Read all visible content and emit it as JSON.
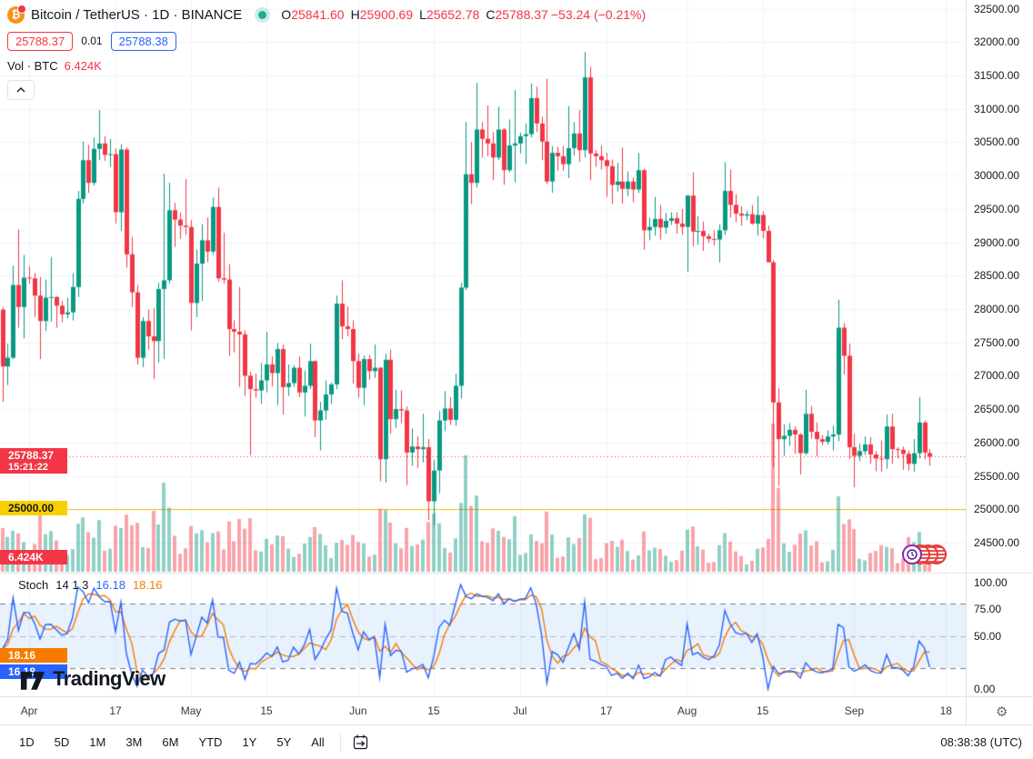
{
  "header": {
    "symbol_title": "Bitcoin / TetherUS · 1D · BINANCE",
    "ohlc": {
      "o_label": "O",
      "o": "25841.60",
      "h_label": "H",
      "h": "25900.69",
      "l_label": "L",
      "l": "25652.78",
      "c_label": "C",
      "c": "25788.37",
      "change": "−53.24 (−0.21%)"
    },
    "sell_price": "25788.37",
    "spread": "0.01",
    "buy_price": "25788.38",
    "vol_label": "Vol · BTC",
    "vol_value": "6.424K",
    "btc_glyph": "₿"
  },
  "indicator": {
    "name": "Stoch",
    "params": "14 1 3",
    "k_value": "16.18",
    "d_value": "18.16"
  },
  "logo_text": "TradingView",
  "toolbar": {
    "ranges": [
      "1D",
      "5D",
      "1M",
      "3M",
      "6M",
      "YTD",
      "1Y",
      "5Y",
      "All"
    ],
    "clock": "08:38:38 (UTC)"
  },
  "tags": {
    "last_price": "25788.37",
    "countdown": "15:21:22",
    "alert_price": "25000.00",
    "volume": "6.424K",
    "stoch_d": "18.16",
    "stoch_k": "16.18"
  },
  "colors": {
    "up": "#089981",
    "down": "#f23645",
    "vol_up": "rgba(8,153,129,0.45)",
    "vol_down": "rgba(242,54,69,0.45)",
    "stoch_k": "#2962ff",
    "stoch_d": "#f57c00",
    "alert_line": "#f0b90b",
    "grid": "#f0f3fa",
    "band_fill": "rgba(33,126,234,0.10)",
    "band_line": "#787b86",
    "mid_line": "#b2b5be",
    "last_line": "#f23645"
  },
  "chart_data": {
    "type": "candlestick",
    "title": "Bitcoin / TetherUS 1D BINANCE",
    "price_axis_labels": [
      32500,
      32000,
      31500,
      31000,
      30500,
      30000,
      29500,
      29000,
      28500,
      28000,
      27500,
      27000,
      26500,
      26000,
      25500,
      25000,
      24500
    ],
    "stoch_axis_labels": [
      100,
      75,
      50,
      0
    ],
    "price_axis_range": [
      24050,
      32630
    ],
    "stoch_bands": {
      "upper": 80,
      "mid": 50,
      "lower": 20
    },
    "last_price": 25788.37,
    "alert_level": 25000,
    "date_ticks": [
      {
        "label": "Apr",
        "i": 5
      },
      {
        "label": "17",
        "i": 21
      },
      {
        "label": "May",
        "i": 35
      },
      {
        "label": "15",
        "i": 49
      },
      {
        "label": "Jun",
        "i": 66
      },
      {
        "label": "15",
        "i": 80
      },
      {
        "label": "Jul",
        "i": 96
      },
      {
        "label": "17",
        "i": 112
      },
      {
        "label": "Aug",
        "i": 127
      },
      {
        "label": "15",
        "i": 141
      },
      {
        "label": "Sep",
        "i": 158
      },
      {
        "label": "18",
        "i": 175
      }
    ],
    "candles": [
      [
        27990,
        28030,
        26610,
        27140,
        11.2
      ],
      [
        27140,
        27480,
        26860,
        27270,
        8.9
      ],
      [
        27270,
        28650,
        27250,
        28360,
        10.5
      ],
      [
        28360,
        29190,
        27720,
        28030,
        9.8
      ],
      [
        28030,
        28810,
        27560,
        28470,
        7.6
      ],
      [
        28470,
        28640,
        28380,
        28460,
        5.2
      ],
      [
        28460,
        28540,
        27880,
        28200,
        7.1
      ],
      [
        28200,
        28480,
        27250,
        27820,
        14.8
      ],
      [
        27820,
        28440,
        27670,
        28170,
        9.6
      ],
      [
        28170,
        28780,
        27810,
        28180,
        10.4
      ],
      [
        28180,
        28190,
        27720,
        28050,
        8.0
      ],
      [
        28050,
        28120,
        27800,
        27920,
        5.6
      ],
      [
        27920,
        28170,
        27860,
        27950,
        4.3
      ],
      [
        27950,
        28540,
        27830,
        28330,
        5.8
      ],
      [
        28330,
        29770,
        28180,
        29650,
        12.3
      ],
      [
        29650,
        30510,
        29580,
        30230,
        13.9
      ],
      [
        30230,
        30460,
        29740,
        29890,
        10.1
      ],
      [
        29890,
        30570,
        29850,
        30400,
        8.7
      ],
      [
        30400,
        30980,
        30230,
        30480,
        13.2
      ],
      [
        30480,
        30590,
        30220,
        30310,
        5.4
      ],
      [
        30310,
        30550,
        30130,
        30320,
        5.9
      ],
      [
        30320,
        30410,
        29280,
        29450,
        11.8
      ],
      [
        29450,
        30470,
        29170,
        30390,
        11.2
      ],
      [
        30390,
        30420,
        28620,
        28820,
        14.6
      ],
      [
        28820,
        29080,
        28030,
        28250,
        11.9
      ],
      [
        28250,
        28360,
        27170,
        27270,
        12.5
      ],
      [
        27270,
        27880,
        27130,
        27820,
        6.3
      ],
      [
        27820,
        27990,
        27390,
        27590,
        6.1
      ],
      [
        27590,
        28010,
        26950,
        27520,
        15.6
      ],
      [
        27520,
        28390,
        27200,
        28300,
        12.1
      ],
      [
        28300,
        30030,
        27250,
        28430,
        22.8
      ],
      [
        28430,
        29890,
        28380,
        29480,
        16.4
      ],
      [
        29480,
        29590,
        28930,
        29340,
        9.2
      ],
      [
        29340,
        29450,
        29050,
        29250,
        4.6
      ],
      [
        29250,
        29950,
        29110,
        29230,
        6.0
      ],
      [
        29230,
        29330,
        27680,
        28090,
        11.7
      ],
      [
        28090,
        28890,
        27880,
        28680,
        9.8
      ],
      [
        28680,
        29270,
        28120,
        29030,
        10.6
      ],
      [
        29030,
        29370,
        28700,
        28860,
        7.5
      ],
      [
        28860,
        29670,
        28810,
        29530,
        9.9
      ],
      [
        29530,
        29820,
        28410,
        28460,
        10.3
      ],
      [
        28460,
        29140,
        28380,
        28440,
        5.7
      ],
      [
        28440,
        28670,
        27300,
        27700,
        12.9
      ],
      [
        27700,
        27830,
        27350,
        27660,
        7.8
      ],
      [
        27660,
        28330,
        26830,
        27620,
        13.5
      ],
      [
        27620,
        27680,
        26700,
        27000,
        11.0
      ],
      [
        27000,
        27060,
        25810,
        26800,
        13.7
      ],
      [
        26800,
        27030,
        26670,
        26780,
        5.5
      ],
      [
        26780,
        27190,
        26580,
        26930,
        5.2
      ],
      [
        26930,
        27660,
        26750,
        27170,
        8.4
      ],
      [
        27170,
        27290,
        26840,
        27040,
        7.0
      ],
      [
        27040,
        27490,
        26560,
        27400,
        9.3
      ],
      [
        27400,
        27470,
        26420,
        26830,
        9.1
      ],
      [
        26830,
        27170,
        26700,
        26890,
        5.9
      ],
      [
        26890,
        27160,
        26830,
        27120,
        3.8
      ],
      [
        27120,
        27290,
        26680,
        26750,
        4.6
      ],
      [
        26750,
        27080,
        26390,
        26850,
        7.2
      ],
      [
        26850,
        27480,
        26800,
        27220,
        8.9
      ],
      [
        27220,
        27230,
        26080,
        26330,
        11.4
      ],
      [
        26330,
        26610,
        25880,
        26480,
        9.7
      ],
      [
        26480,
        26930,
        26340,
        26720,
        6.8
      ],
      [
        26720,
        26900,
        26580,
        26870,
        3.5
      ],
      [
        26870,
        28200,
        26800,
        28080,
        7.4
      ],
      [
        28080,
        28430,
        27550,
        27740,
        8.1
      ],
      [
        27740,
        28040,
        27590,
        27700,
        6.9
      ],
      [
        27700,
        27830,
        26880,
        27220,
        9.4
      ],
      [
        27220,
        27330,
        26670,
        26820,
        7.6
      ],
      [
        26820,
        27300,
        26560,
        27250,
        7.2
      ],
      [
        27250,
        27310,
        26940,
        27070,
        3.9
      ],
      [
        27070,
        27470,
        26970,
        27120,
        4.4
      ],
      [
        27120,
        27130,
        25420,
        25750,
        16.1
      ],
      [
        25750,
        27330,
        25400,
        27240,
        15.8
      ],
      [
        27240,
        27390,
        26130,
        26350,
        12.6
      ],
      [
        26350,
        26790,
        26220,
        26500,
        7.3
      ],
      [
        26500,
        26780,
        26290,
        26480,
        6.0
      ],
      [
        26480,
        26540,
        25360,
        25850,
        11.2
      ],
      [
        25850,
        26210,
        25650,
        25940,
        6.6
      ],
      [
        25940,
        26090,
        25620,
        25900,
        7.0
      ],
      [
        25900,
        26430,
        25700,
        25930,
        8.2
      ],
      [
        25930,
        26050,
        24840,
        25120,
        12.7
      ],
      [
        25120,
        25740,
        24760,
        25580,
        14.9
      ],
      [
        25580,
        26470,
        25240,
        26330,
        12.4
      ],
      [
        26330,
        26770,
        26170,
        26510,
        6.1
      ],
      [
        26510,
        26680,
        26260,
        26340,
        4.9
      ],
      [
        26340,
        27030,
        26250,
        26850,
        8.5
      ],
      [
        26850,
        28390,
        26660,
        28320,
        17.6
      ],
      [
        28320,
        30800,
        28280,
        30020,
        29.8
      ],
      [
        30020,
        30500,
        29570,
        29890,
        16.8
      ],
      [
        29890,
        31390,
        29820,
        30690,
        19.5
      ],
      [
        30690,
        30800,
        30270,
        30550,
        7.8
      ],
      [
        30550,
        31050,
        30290,
        30480,
        7.4
      ],
      [
        30480,
        30650,
        29930,
        30270,
        11.1
      ],
      [
        30270,
        31030,
        30230,
        30690,
        10.5
      ],
      [
        30690,
        30710,
        29860,
        30080,
        8.9
      ],
      [
        30080,
        30840,
        30050,
        30450,
        8.3
      ],
      [
        30450,
        31280,
        29900,
        30480,
        14.2
      ],
      [
        30480,
        30640,
        30330,
        30590,
        4.3
      ],
      [
        30590,
        30780,
        30170,
        30620,
        4.8
      ],
      [
        30620,
        31380,
        30570,
        31160,
        9.6
      ],
      [
        31160,
        31330,
        30650,
        30780,
        7.9
      ],
      [
        30780,
        30880,
        30230,
        30510,
        7.3
      ],
      [
        30510,
        31450,
        29870,
        29910,
        15.4
      ],
      [
        29910,
        30440,
        29740,
        30340,
        9.5
      ],
      [
        30340,
        30430,
        30070,
        30290,
        3.6
      ],
      [
        30290,
        30440,
        30070,
        30170,
        3.9
      ],
      [
        30170,
        31040,
        29960,
        30410,
        8.8
      ],
      [
        30410,
        30800,
        30300,
        30630,
        7.1
      ],
      [
        30630,
        30980,
        30200,
        30380,
        8.6
      ],
      [
        30380,
        31850,
        30270,
        31470,
        14.7
      ],
      [
        31470,
        31630,
        29930,
        30330,
        13.8
      ],
      [
        30330,
        30380,
        30130,
        30290,
        3.2
      ],
      [
        30290,
        30450,
        30090,
        30230,
        3.5
      ],
      [
        30230,
        30340,
        29680,
        30140,
        7.3
      ],
      [
        30140,
        30240,
        29570,
        29860,
        7.9
      ],
      [
        29860,
        30190,
        29760,
        29910,
        6.4
      ],
      [
        29910,
        30420,
        29580,
        29800,
        8.2
      ],
      [
        29800,
        30060,
        29690,
        29910,
        5.3
      ],
      [
        29910,
        29970,
        29600,
        29790,
        3.1
      ],
      [
        29790,
        30340,
        29740,
        30080,
        4.2
      ],
      [
        30080,
        30100,
        28890,
        29180,
        10.3
      ],
      [
        29180,
        29370,
        29030,
        29230,
        5.5
      ],
      [
        29230,
        29680,
        29100,
        29350,
        6.2
      ],
      [
        29350,
        29560,
        29040,
        29220,
        5.8
      ],
      [
        29220,
        29440,
        29130,
        29320,
        4.1
      ],
      [
        29320,
        29450,
        29260,
        29360,
        2.6
      ],
      [
        29360,
        29450,
        29130,
        29280,
        3.0
      ],
      [
        29280,
        29500,
        29110,
        29230,
        5.4
      ],
      [
        29230,
        29710,
        28560,
        29700,
        10.8
      ],
      [
        29700,
        30050,
        28940,
        29160,
        11.6
      ],
      [
        29160,
        29390,
        28960,
        29170,
        6.5
      ],
      [
        29170,
        29310,
        28870,
        29090,
        5.7
      ],
      [
        29090,
        29130,
        28990,
        29050,
        2.3
      ],
      [
        29050,
        29180,
        28950,
        29040,
        2.5
      ],
      [
        29040,
        29270,
        28700,
        29180,
        6.8
      ],
      [
        29180,
        30200,
        29110,
        29770,
        9.9
      ],
      [
        29770,
        30090,
        29370,
        29560,
        7.7
      ],
      [
        29560,
        29720,
        29300,
        29430,
        5.2
      ],
      [
        29430,
        29540,
        29250,
        29400,
        4.0
      ],
      [
        29400,
        29470,
        29330,
        29420,
        1.9
      ],
      [
        29420,
        29560,
        29260,
        29280,
        2.8
      ],
      [
        29280,
        29690,
        29100,
        29410,
        5.9
      ],
      [
        29410,
        29460,
        29060,
        29170,
        6.2
      ],
      [
        29170,
        29250,
        28700,
        28700,
        8.4
      ],
      [
        28700,
        28740,
        25630,
        26600,
        37.9
      ],
      [
        26600,
        26810,
        25350,
        26050,
        21.4
      ],
      [
        26050,
        26270,
        25800,
        26100,
        7.3
      ],
      [
        26100,
        26290,
        25950,
        26190,
        5.1
      ],
      [
        26190,
        26240,
        25830,
        26120,
        6.9
      ],
      [
        26120,
        26140,
        25520,
        25840,
        9.8
      ],
      [
        25840,
        26790,
        25810,
        26430,
        10.6
      ],
      [
        26430,
        26550,
        26060,
        26160,
        6.7
      ],
      [
        26160,
        26300,
        25790,
        26050,
        7.8
      ],
      [
        26050,
        26110,
        25960,
        26010,
        2.4
      ],
      [
        26010,
        26180,
        25970,
        26090,
        2.7
      ],
      [
        26090,
        26250,
        25880,
        26120,
        5.6
      ],
      [
        26120,
        28140,
        26020,
        27720,
        19.3
      ],
      [
        27720,
        27790,
        27020,
        27300,
        12.2
      ],
      [
        27300,
        27480,
        25750,
        25930,
        13.4
      ],
      [
        25930,
        26130,
        25330,
        25800,
        10.9
      ],
      [
        25800,
        25980,
        25720,
        25870,
        3.3
      ],
      [
        25870,
        26090,
        25810,
        25970,
        2.9
      ],
      [
        25970,
        26080,
        25680,
        25820,
        4.8
      ],
      [
        25820,
        25870,
        25570,
        25760,
        5.3
      ],
      [
        25760,
        26030,
        25560,
        25750,
        6.8
      ],
      [
        25750,
        26420,
        25610,
        26240,
        6.4
      ],
      [
        26240,
        26430,
        25680,
        25900,
        6.0
      ],
      [
        25900,
        25930,
        25760,
        25890,
        2.2
      ],
      [
        25890,
        25940,
        25590,
        25830,
        3.4
      ],
      [
        25830,
        25880,
        25580,
        25680,
        8.9
      ],
      [
        25680,
        26050,
        25560,
        25840,
        7.6
      ],
      [
        25840,
        26680,
        25760,
        26300,
        10.2
      ],
      [
        26300,
        26330,
        25750,
        25850,
        6.9
      ],
      [
        25841.6,
        25900.69,
        25652.78,
        25788.37,
        6.424
      ]
    ]
  }
}
